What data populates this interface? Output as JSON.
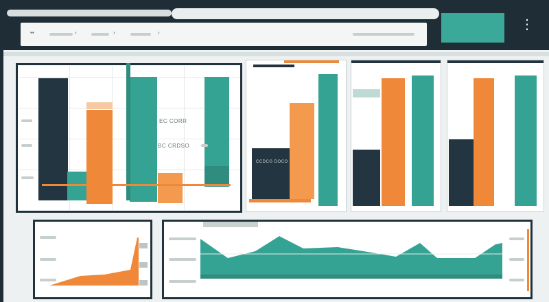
{
  "window": {
    "menu_icon": "ellipsis-vertical-icon",
    "menu_glyph": "⋮"
  },
  "toolbar": {
    "menu_icon": "grid-icon",
    "menu_glyph": "▪▪",
    "nav_chevron_glyph": "›"
  },
  "colors": {
    "teal": "#35a393",
    "orange": "#f0883a",
    "navy": "#223540",
    "background": "#1f2d36"
  },
  "panels": {
    "main_chart": {
      "label_a": "EC CORR",
      "label_b": "BC CRDSO"
    },
    "chart_two": {
      "label_a": "CCDCG DOCO"
    }
  }
}
